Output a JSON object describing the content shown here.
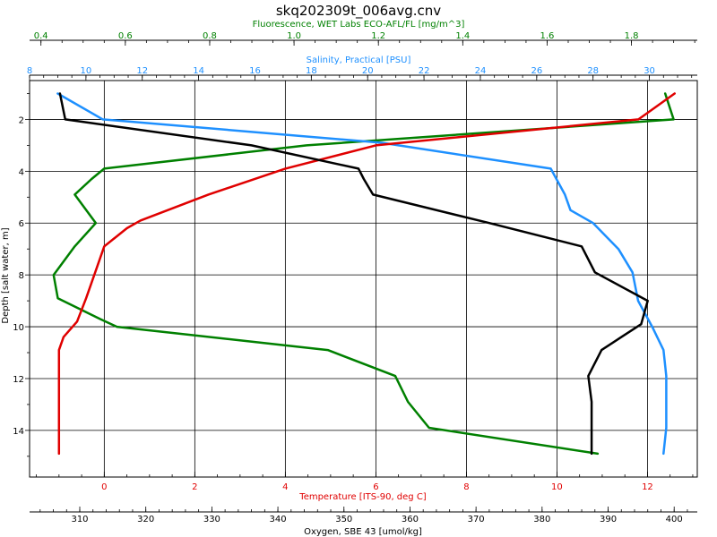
{
  "chart_data": {
    "type": "line",
    "title": "skq202309t_006avg.cnv",
    "grid": true,
    "y_axis": {
      "label": "Depth [salt water, m]",
      "range": [
        15.8,
        0.5
      ],
      "ticks": [
        2,
        4,
        6,
        8,
        10,
        12,
        14
      ],
      "tick_labels": [
        "2",
        "4",
        "6",
        "8",
        "10",
        "12",
        "14"
      ]
    },
    "x_axes": {
      "fluorescence": {
        "label": "Fluorescence, WET Labs ECO-AFL/FL [mg/m^3]",
        "position": "top",
        "color": "#008000",
        "range": [
          0.373,
          1.956
        ],
        "ticks": [
          0.4,
          0.6,
          0.8,
          1.0,
          1.2,
          1.4,
          1.6,
          1.8
        ],
        "tick_labels": [
          "0.4",
          "0.6",
          "0.8",
          "1.0",
          "1.2",
          "1.4",
          "1.6",
          "1.8"
        ]
      },
      "salinity": {
        "label": "Salinity, Practical [PSU]",
        "position": "top",
        "color": "#1e90ff",
        "range": [
          8.0,
          31.7
        ],
        "ticks": [
          8,
          10,
          12,
          14,
          16,
          18,
          20,
          22,
          24,
          26,
          28,
          30
        ],
        "tick_labels": [
          "8",
          "10",
          "12",
          "14",
          "16",
          "18",
          "20",
          "22",
          "24",
          "26",
          "28",
          "30"
        ]
      },
      "temperature": {
        "label": "Temperature [ITS-90, deg C]",
        "position": "bottom",
        "color": "#e00000",
        "range": [
          -1.65,
          13.1
        ],
        "ticks": [
          0,
          2,
          4,
          6,
          8,
          10,
          12
        ],
        "tick_labels": [
          "0",
          "2",
          "4",
          "6",
          "8",
          "10",
          "12"
        ]
      },
      "oxygen": {
        "label": "Oxygen, SBE 43 [umol/kg]",
        "position": "bottom",
        "color": "#000000",
        "range": [
          302.4,
          403.5
        ],
        "ticks": [
          310,
          320,
          330,
          340,
          350,
          360,
          370,
          380,
          390,
          400
        ],
        "tick_labels": [
          "310",
          "320",
          "330",
          "340",
          "350",
          "360",
          "370",
          "380",
          "390",
          "400"
        ]
      }
    },
    "series": [
      {
        "name": "Fluorescence",
        "axis": "fluorescence",
        "color": "#008000",
        "points": [
          [
            1.88,
            1.0
          ],
          [
            1.9,
            2.0
          ],
          [
            1.03,
            3.0
          ],
          [
            0.55,
            3.9
          ],
          [
            0.52,
            4.3
          ],
          [
            0.48,
            4.9
          ],
          [
            0.53,
            6.0
          ],
          [
            0.48,
            6.9
          ],
          [
            0.43,
            8.0
          ],
          [
            0.44,
            8.9
          ],
          [
            0.54,
            9.7
          ],
          [
            0.58,
            10.0
          ],
          [
            1.08,
            10.9
          ],
          [
            1.24,
            11.9
          ],
          [
            1.27,
            12.9
          ],
          [
            1.32,
            13.9
          ],
          [
            1.72,
            14.9
          ]
        ]
      },
      {
        "name": "Salinity",
        "axis": "salinity",
        "color": "#1e90ff",
        "points": [
          [
            9.0,
            1.0
          ],
          [
            10.6,
            2.0
          ],
          [
            20.5,
            2.9
          ],
          [
            26.5,
            3.9
          ],
          [
            27.0,
            4.9
          ],
          [
            27.2,
            5.5
          ],
          [
            28.0,
            6.0
          ],
          [
            28.9,
            7.0
          ],
          [
            29.4,
            7.9
          ],
          [
            29.6,
            9.0
          ],
          [
            30.1,
            10.0
          ],
          [
            30.5,
            10.9
          ],
          [
            30.6,
            11.9
          ],
          [
            30.6,
            12.9
          ],
          [
            30.6,
            13.9
          ],
          [
            30.5,
            14.9
          ]
        ]
      },
      {
        "name": "Temperature",
        "axis": "temperature",
        "color": "#e00000",
        "points": [
          [
            12.6,
            1.0
          ],
          [
            11.8,
            2.0
          ],
          [
            6.0,
            3.0
          ],
          [
            4.0,
            3.9
          ],
          [
            2.3,
            4.9
          ],
          [
            0.8,
            5.9
          ],
          [
            0.5,
            6.2
          ],
          [
            0.0,
            6.9
          ],
          [
            -0.2,
            7.9
          ],
          [
            -0.4,
            8.9
          ],
          [
            -0.6,
            9.8
          ],
          [
            -0.9,
            10.4
          ],
          [
            -1.0,
            10.9
          ],
          [
            -1.0,
            11.9
          ],
          [
            -1.0,
            12.9
          ],
          [
            -1.0,
            13.9
          ],
          [
            -1.0,
            14.9
          ]
        ]
      },
      {
        "name": "Oxygen",
        "axis": "oxygen",
        "color": "#000000",
        "points": [
          [
            307.0,
            1.0
          ],
          [
            307.8,
            2.0
          ],
          [
            336.0,
            3.0
          ],
          [
            352.2,
            3.9
          ],
          [
            353.0,
            4.3
          ],
          [
            354.4,
            4.9
          ],
          [
            372.0,
            6.0
          ],
          [
            386.0,
            6.9
          ],
          [
            388.0,
            7.9
          ],
          [
            396.0,
            9.0
          ],
          [
            395.0,
            9.9
          ],
          [
            392.0,
            10.4
          ],
          [
            389.0,
            10.9
          ],
          [
            387.0,
            11.9
          ],
          [
            387.5,
            12.9
          ],
          [
            387.5,
            13.9
          ],
          [
            387.5,
            14.9
          ]
        ]
      }
    ]
  }
}
